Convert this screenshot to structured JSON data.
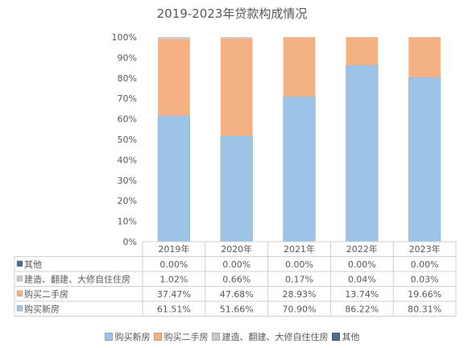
{
  "chart_data": {
    "type": "bar",
    "stacked": true,
    "percent": true,
    "title": "2019-2023年贷款构成情况",
    "categories": [
      "2019年",
      "2020年",
      "2021年",
      "2022年",
      "2023年"
    ],
    "yticks": [
      "0%",
      "10%",
      "20%",
      "30%",
      "40%",
      "50%",
      "60%",
      "70%",
      "80%",
      "90%",
      "100%"
    ],
    "ylim": [
      0,
      100
    ],
    "grid": false,
    "legend_position": "bottom",
    "series": [
      {
        "name": "购买新房",
        "color": "#9dc3e6",
        "values": [
          61.51,
          51.66,
          70.9,
          86.22,
          80.31
        ],
        "labels": [
          "61.51%",
          "51.66%",
          "70.90%",
          "86.22%",
          "80.31%"
        ]
      },
      {
        "name": "购买二手房",
        "color": "#f4b183",
        "values": [
          37.47,
          47.68,
          28.93,
          13.74,
          19.66
        ],
        "labels": [
          "37.47%",
          "47.68%",
          "28.93%",
          "13.74%",
          "19.66%"
        ]
      },
      {
        "name": "建造、翻建、大修自住住房",
        "color": "#c9c9c9",
        "values": [
          1.02,
          0.66,
          0.17,
          0.04,
          0.03
        ],
        "labels": [
          "1.02%",
          "0.66%",
          "0.17%",
          "0.04%",
          "0.03%"
        ]
      },
      {
        "name": "其他",
        "color": "#4f6d8f",
        "values": [
          0.0,
          0.0,
          0.0,
          0.0,
          0.0
        ],
        "labels": [
          "0.00%",
          "0.00%",
          "0.00%",
          "0.00%",
          "0.00%"
        ]
      }
    ]
  }
}
